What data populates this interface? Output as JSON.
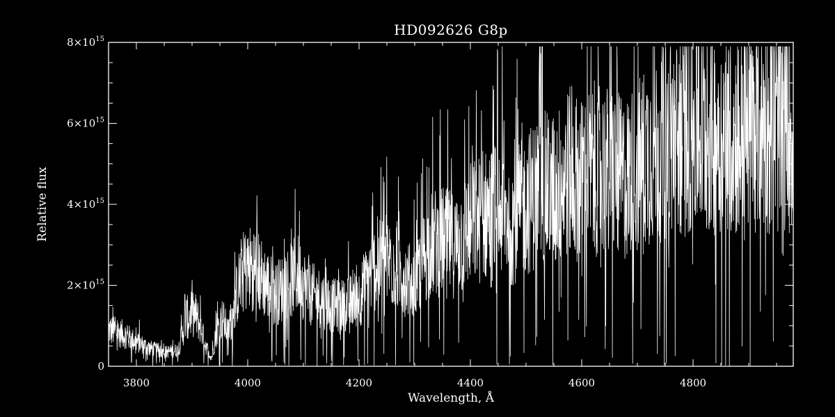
{
  "chart_data": {
    "type": "line",
    "title": "HD092626  G8p",
    "xlabel": "Wavelength, Å",
    "ylabel": "Relative flux",
    "xlim": [
      3750,
      4980
    ],
    "ylim": [
      0,
      8000000000000000.0
    ],
    "xticks": [
      3800,
      4000,
      4200,
      4400,
      4600,
      4800
    ],
    "xtick_labels": [
      "3800",
      "4000",
      "4200",
      "4400",
      "4600",
      "4800"
    ],
    "yticks": [
      0,
      2000000000000000.0,
      4000000000000000.0,
      6000000000000000.0,
      8000000000000000.0
    ],
    "ytick_labels": [
      {
        "base": "0",
        "exp": ""
      },
      {
        "base": "2×10",
        "exp": "15"
      },
      {
        "base": "4×10",
        "exp": "15"
      },
      {
        "base": "6×10",
        "exp": "15"
      },
      {
        "base": "8×10",
        "exp": "15"
      }
    ],
    "grid": false,
    "colors": {
      "background": "#000000",
      "foreground": "#ffffff"
    },
    "series": [
      {
        "x": [
          3750,
          3775,
          3800,
          3825,
          3850,
          3875,
          3890,
          3905,
          3915,
          3925,
          3935,
          3945,
          3955,
          3965,
          3975,
          3990,
          4010,
          4030,
          4050,
          4070,
          4090,
          4110,
          4130,
          4150,
          4175,
          4200,
          4225,
          4250,
          4275,
          4300,
          4325,
          4350,
          4375,
          4400,
          4425,
          4450,
          4475,
          4500,
          4525,
          4550,
          4575,
          4600,
          4625,
          4650,
          4675,
          4700,
          4725,
          4750,
          4775,
          4800,
          4825,
          4850,
          4875,
          4900,
          4925,
          4950,
          4980
        ],
        "y": [
          900000000000000.0,
          800000000000000.0,
          600000000000000.0,
          450000000000000.0,
          350000000000000.0,
          400000000000000.0,
          1200000000000000.0,
          1300000000000000.0,
          1000000000000000.0,
          500000000000000.0,
          200000000000000.0,
          900000000000000.0,
          1200000000000000.0,
          800000000000000.0,
          1500000000000000.0,
          2300000000000000.0,
          2500000000000000.0,
          2100000000000000.0,
          1800000000000000.0,
          2000000000000000.0,
          2300000000000000.0,
          1800000000000000.0,
          1700000000000000.0,
          1500000000000000.0,
          1500000000000000.0,
          1700000000000000.0,
          2400000000000000.0,
          2600000000000000.0,
          2300000000000000.0,
          2000000000000000.0,
          3000000000000000.0,
          3100000000000000.0,
          3000000000000000.0,
          3500000000000000.0,
          3700000000000000.0,
          3900000000000000.0,
          3600000000000000.0,
          4000000000000000.0,
          4400000000000000.0,
          4300000000000000.0,
          4800000000000000.0,
          4600000000000000.0,
          4900000000000000.0,
          4800000000000000.0,
          4600000000000000.0,
          4900000000000000.0,
          5400000000000000.0,
          5500000000000000.0,
          5600000000000000.0,
          5800000000000000.0,
          5700000000000000.0,
          5900000000000000.0,
          5700000000000000.0,
          5900000000000000.0,
          6000000000000000.0,
          5800000000000000.0,
          6000000000000000.0
        ]
      }
    ]
  }
}
